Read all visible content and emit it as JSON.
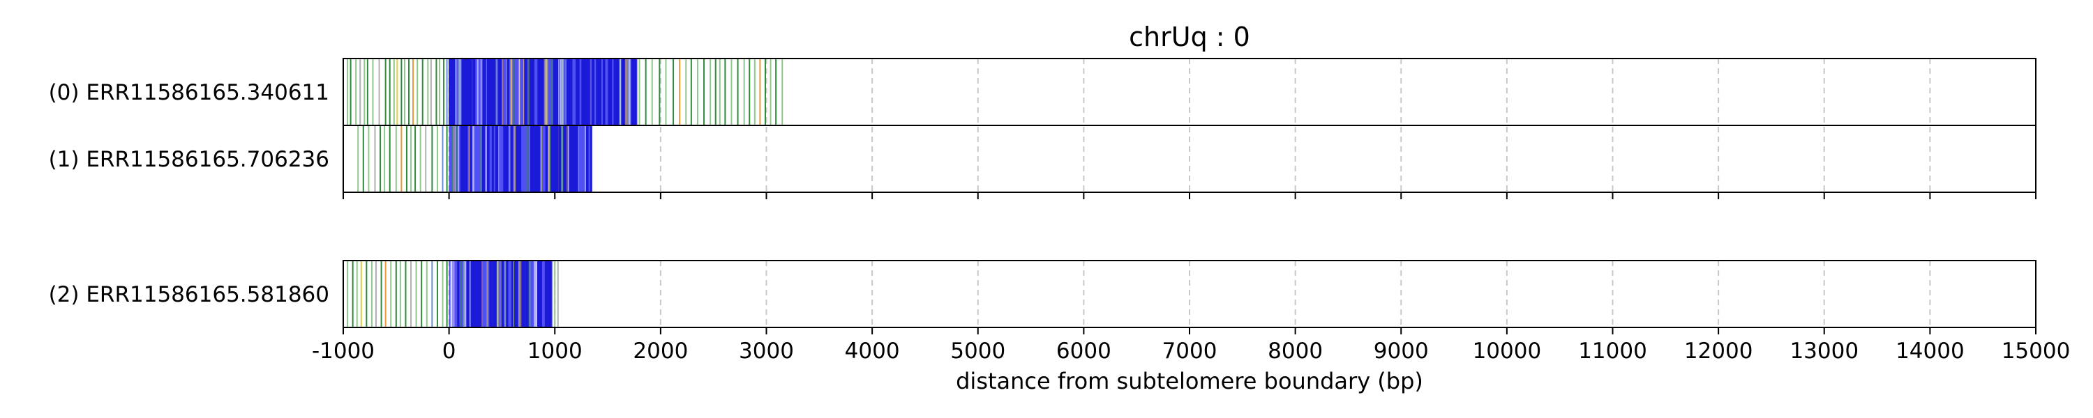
{
  "chart_data": {
    "type": "barcode",
    "title": "chrUq : 0",
    "xlabel": "distance from subtelomere boundary (bp)",
    "xlim": [
      -1000,
      15000
    ],
    "x_ticks": [
      -1000,
      0,
      1000,
      2000,
      3000,
      4000,
      5000,
      6000,
      7000,
      8000,
      9000,
      10000,
      11000,
      12000,
      13000,
      14000,
      15000
    ],
    "x_tick_labels": [
      "-1000",
      "0",
      "1000",
      "2000",
      "3000",
      "4000",
      "5000",
      "6000",
      "7000",
      "8000",
      "9000",
      "10000",
      "11000",
      "12000",
      "13000",
      "14000",
      "15000"
    ],
    "grid": "vertical dashed",
    "mark_colors": {
      "dense": "#2b2bf0",
      "green": "#2e8b3a",
      "light_green": "#8fc88f",
      "orange": "#e89a3a",
      "grey": "#b0b0b0",
      "yellow": "#d8d040",
      "blue": "#6a8fd8"
    },
    "reads": [
      {
        "label": "(0) ERR11586165.340611",
        "group": 0,
        "read_end": 3170,
        "marks": [
          {
            "x": -960,
            "c": "light_green"
          },
          {
            "x": -930,
            "c": "green"
          },
          {
            "x": -880,
            "c": "light_green"
          },
          {
            "x": -840,
            "c": "grey"
          },
          {
            "x": -800,
            "c": "light_green"
          },
          {
            "x": -770,
            "c": "green"
          },
          {
            "x": -720,
            "c": "light_green"
          },
          {
            "x": -660,
            "c": "grey"
          },
          {
            "x": -600,
            "c": "green"
          },
          {
            "x": -560,
            "c": "green"
          },
          {
            "x": -520,
            "c": "light_green"
          },
          {
            "x": -490,
            "c": "yellow"
          },
          {
            "x": -450,
            "c": "green"
          },
          {
            "x": -420,
            "c": "light_green"
          },
          {
            "x": -380,
            "c": "green"
          },
          {
            "x": -340,
            "c": "orange"
          },
          {
            "x": -300,
            "c": "light_green"
          },
          {
            "x": -250,
            "c": "green"
          },
          {
            "x": -200,
            "c": "light_green"
          },
          {
            "x": -170,
            "c": "grey"
          },
          {
            "x": -120,
            "c": "green"
          },
          {
            "x": -90,
            "c": "light_green"
          },
          {
            "x": -50,
            "c": "green"
          },
          {
            "x": -20,
            "c": "blue"
          },
          {
            "x": 1800,
            "c": "light_green"
          },
          {
            "x": 1860,
            "c": "green"
          },
          {
            "x": 1920,
            "c": "light_green"
          },
          {
            "x": 1990,
            "c": "green"
          },
          {
            "x": 2050,
            "c": "light_green"
          },
          {
            "x": 2120,
            "c": "green"
          },
          {
            "x": 2180,
            "c": "orange"
          },
          {
            "x": 2240,
            "c": "light_green"
          },
          {
            "x": 2290,
            "c": "green"
          },
          {
            "x": 2350,
            "c": "light_green"
          },
          {
            "x": 2410,
            "c": "green"
          },
          {
            "x": 2470,
            "c": "light_green"
          },
          {
            "x": 2520,
            "c": "green"
          },
          {
            "x": 2560,
            "c": "light_green"
          },
          {
            "x": 2610,
            "c": "green"
          },
          {
            "x": 2670,
            "c": "light_green"
          },
          {
            "x": 2730,
            "c": "green"
          },
          {
            "x": 2790,
            "c": "light_green"
          },
          {
            "x": 2840,
            "c": "green"
          },
          {
            "x": 2890,
            "c": "light_green"
          },
          {
            "x": 2940,
            "c": "orange"
          },
          {
            "x": 2990,
            "c": "green"
          },
          {
            "x": 3040,
            "c": "light_green"
          },
          {
            "x": 3090,
            "c": "green"
          },
          {
            "x": 3150,
            "c": "light_green"
          }
        ],
        "dense_regions": [
          [
            0,
            1780
          ]
        ]
      },
      {
        "label": "(1) ERR11586165.706236",
        "group": 0,
        "read_end": 1350,
        "marks": [
          {
            "x": -860,
            "c": "light_green"
          },
          {
            "x": -810,
            "c": "green"
          },
          {
            "x": -760,
            "c": "light_green"
          },
          {
            "x": -700,
            "c": "grey"
          },
          {
            "x": -650,
            "c": "green"
          },
          {
            "x": -610,
            "c": "light_green"
          },
          {
            "x": -560,
            "c": "green"
          },
          {
            "x": -500,
            "c": "light_green"
          },
          {
            "x": -450,
            "c": "orange"
          },
          {
            "x": -400,
            "c": "green"
          },
          {
            "x": -360,
            "c": "light_green"
          },
          {
            "x": -320,
            "c": "green"
          },
          {
            "x": -270,
            "c": "light_green"
          },
          {
            "x": -220,
            "c": "grey"
          },
          {
            "x": -160,
            "c": "green"
          },
          {
            "x": -110,
            "c": "light_green"
          },
          {
            "x": -60,
            "c": "blue"
          },
          {
            "x": -20,
            "c": "green"
          }
        ],
        "dense_regions": [
          [
            0,
            1350
          ]
        ]
      },
      {
        "label": "(2) ERR11586165.581860",
        "group": 1,
        "read_end": 1050,
        "marks": [
          {
            "x": -960,
            "c": "light_green"
          },
          {
            "x": -910,
            "c": "green"
          },
          {
            "x": -870,
            "c": "light_green"
          },
          {
            "x": -830,
            "c": "yellow"
          },
          {
            "x": -780,
            "c": "green"
          },
          {
            "x": -730,
            "c": "light_green"
          },
          {
            "x": -690,
            "c": "grey"
          },
          {
            "x": -640,
            "c": "green"
          },
          {
            "x": -600,
            "c": "orange"
          },
          {
            "x": -550,
            "c": "light_green"
          },
          {
            "x": -500,
            "c": "green"
          },
          {
            "x": -460,
            "c": "light_green"
          },
          {
            "x": -410,
            "c": "green"
          },
          {
            "x": -360,
            "c": "grey"
          },
          {
            "x": -310,
            "c": "light_green"
          },
          {
            "x": -260,
            "c": "green"
          },
          {
            "x": -210,
            "c": "light_green"
          },
          {
            "x": -160,
            "c": "blue"
          },
          {
            "x": -110,
            "c": "green"
          },
          {
            "x": -60,
            "c": "light_green"
          },
          {
            "x": -20,
            "c": "green"
          },
          {
            "x": 1000,
            "c": "light_green"
          },
          {
            "x": 1030,
            "c": "grey"
          }
        ],
        "dense_regions": [
          [
            0,
            980
          ]
        ]
      }
    ]
  }
}
